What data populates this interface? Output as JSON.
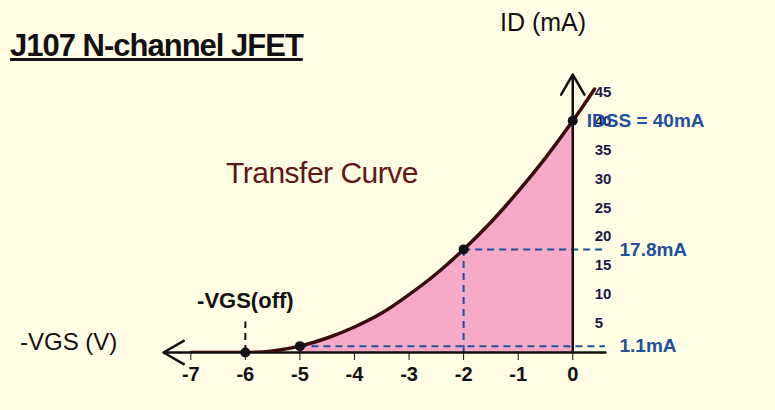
{
  "chart_data": {
    "type": "line",
    "title": "J107 N-channel JFET",
    "annotation": "Transfer Curve",
    "x_label": "-VGS (V)",
    "y_label": "ID (mA)",
    "x": [
      -7,
      -6.5,
      -6,
      -5.5,
      -5,
      -4.5,
      -4,
      -3.5,
      -3,
      -2.5,
      -2,
      -1.5,
      -1,
      -0.5,
      0,
      0.2,
      0.4
    ],
    "values": [
      0,
      0,
      0,
      0.28,
      1.1,
      2.5,
      4.4,
      6.8,
      10,
      13.6,
      17.8,
      22.5,
      27.8,
      33.6,
      40,
      42.7,
      45.5
    ],
    "color": "#3a0d0d",
    "shaded": {
      "x_range": [
        -5,
        0
      ],
      "color": "#f5a9c6"
    },
    "points": [
      {
        "x": -6,
        "y": 0,
        "label": "-VGS(off)"
      },
      {
        "x": -5,
        "y": 1.1,
        "label": "1.1mA"
      },
      {
        "x": -2,
        "y": 17.8,
        "label": "17.8mA"
      },
      {
        "x": 0,
        "y": 40,
        "label": "IDSS = 40mA"
      }
    ],
    "xlim": [
      -7.5,
      0.6
    ],
    "ylim": [
      0,
      48
    ],
    "xticks": [
      -7,
      -6,
      -5,
      -4,
      -3,
      -2,
      -1,
      0
    ],
    "yticks": [
      5,
      10,
      15,
      20,
      25,
      30,
      35,
      40,
      45
    ],
    "grid": false
  }
}
